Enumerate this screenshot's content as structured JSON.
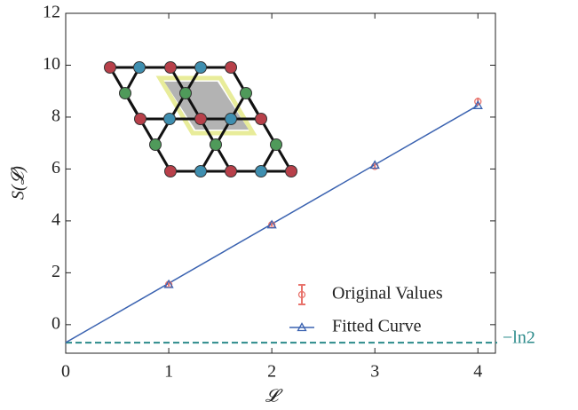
{
  "chart_data": {
    "type": "scatter",
    "xlabel": "𝓛",
    "ylabel": "S(𝓛)",
    "xlim": [
      0,
      4.17
    ],
    "ylim": [
      -1.1,
      12
    ],
    "xticks": [
      0,
      1,
      2,
      3,
      4
    ],
    "yticks": [
      0,
      2,
      4,
      6,
      8,
      10,
      12
    ],
    "series": [
      {
        "name": "Original Values",
        "color": "#e8736c",
        "marker": "circle",
        "x": [
          1,
          2,
          3,
          4
        ],
        "values": [
          1.55,
          3.85,
          6.1,
          8.6
        ],
        "errors": [
          0.08,
          0.08,
          0.08,
          0.15
        ]
      },
      {
        "name": "Fitted Curve",
        "color": "#3a62b0",
        "marker": "triangle",
        "x": [
          1,
          2,
          3,
          4
        ],
        "values": [
          1.55,
          3.85,
          6.15,
          8.45
        ]
      }
    ],
    "fit_line": {
      "color": "#3a62b0",
      "x": [
        0,
        4
      ],
      "values": [
        -0.69,
        8.45
      ]
    },
    "reference_line": {
      "value": -0.693,
      "label": "−ln2",
      "color": "#2a8a8a",
      "style": "dashed"
    },
    "legend": "lower right"
  }
}
